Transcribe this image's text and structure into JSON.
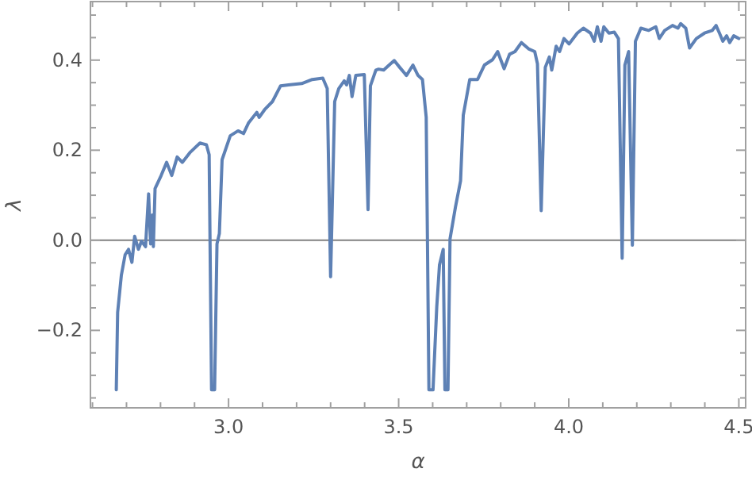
{
  "chart_data": {
    "type": "line",
    "xlabel": "α",
    "ylabel": "λ",
    "xlim": [
      2.594,
      4.52
    ],
    "ylim": [
      -0.372,
      0.53
    ],
    "xticks": [
      {
        "value": 2.6,
        "label": null
      },
      {
        "value": 2.7,
        "label": null
      },
      {
        "value": 2.8,
        "label": null
      },
      {
        "value": 2.9,
        "label": null
      },
      {
        "value": 3.0,
        "label": "3.0"
      },
      {
        "value": 3.1,
        "label": null
      },
      {
        "value": 3.2,
        "label": null
      },
      {
        "value": 3.3,
        "label": null
      },
      {
        "value": 3.4,
        "label": null
      },
      {
        "value": 3.5,
        "label": "3.5"
      },
      {
        "value": 3.6,
        "label": null
      },
      {
        "value": 3.7,
        "label": null
      },
      {
        "value": 3.8,
        "label": null
      },
      {
        "value": 3.9,
        "label": null
      },
      {
        "value": 4.0,
        "label": "4.0"
      },
      {
        "value": 4.1,
        "label": null
      },
      {
        "value": 4.2,
        "label": null
      },
      {
        "value": 4.3,
        "label": null
      },
      {
        "value": 4.4,
        "label": null
      },
      {
        "value": 4.5,
        "label": "4.5"
      }
    ],
    "yticks": [
      {
        "value": -0.35,
        "label": null
      },
      {
        "value": -0.3,
        "label": null
      },
      {
        "value": -0.25,
        "label": null
      },
      {
        "value": -0.2,
        "label": "−0.2"
      },
      {
        "value": -0.15,
        "label": null
      },
      {
        "value": -0.1,
        "label": null
      },
      {
        "value": -0.05,
        "label": null
      },
      {
        "value": 0,
        "label": "0.0"
      },
      {
        "value": 0.05,
        "label": null
      },
      {
        "value": 0.1,
        "label": null
      },
      {
        "value": 0.15,
        "label": null
      },
      {
        "value": 0.2,
        "label": "0.2"
      },
      {
        "value": 0.25,
        "label": null
      },
      {
        "value": 0.3,
        "label": null
      },
      {
        "value": 0.35,
        "label": null
      },
      {
        "value": 0.4,
        "label": "0.4"
      },
      {
        "value": 0.45,
        "label": null
      },
      {
        "value": 0.5,
        "label": null
      }
    ],
    "ref_lines": [
      {
        "axis": "y",
        "value": 0,
        "color": "#808080"
      }
    ],
    "marker": "none",
    "line_style": "solid",
    "series": [
      {
        "color": "#5e81b5",
        "x": [
          2.67,
          2.674,
          2.685,
          2.696,
          2.706,
          2.716,
          2.724,
          2.735,
          2.744,
          2.756,
          2.765,
          2.771,
          2.776,
          2.779,
          2.784,
          2.802,
          2.818,
          2.833,
          2.849,
          2.864,
          2.888,
          2.916,
          2.935,
          2.943,
          2.95,
          2.959,
          2.966,
          2.973,
          2.981,
          3.005,
          3.028,
          3.044,
          3.059,
          3.083,
          3.09,
          3.106,
          3.129,
          3.153,
          3.176,
          3.215,
          3.246,
          3.277,
          3.29,
          3.3,
          3.312,
          3.324,
          3.34,
          3.347,
          3.355,
          3.363,
          3.374,
          3.399,
          3.41,
          3.417,
          3.433,
          3.441,
          3.456,
          3.472,
          3.487,
          3.503,
          3.523,
          3.542,
          3.557,
          3.57,
          3.581,
          3.589,
          3.601,
          3.612,
          3.62,
          3.631,
          3.636,
          3.645,
          3.651,
          3.667,
          3.682,
          3.69,
          3.709,
          3.732,
          3.752,
          3.776,
          3.791,
          3.81,
          3.826,
          3.842,
          3.861,
          3.882,
          3.9,
          3.908,
          3.919,
          3.931,
          3.943,
          3.95,
          3.963,
          3.973,
          3.986,
          4.001,
          4.025,
          4.043,
          4.064,
          4.075,
          4.084,
          4.095,
          4.103,
          4.118,
          4.134,
          4.146,
          4.157,
          4.165,
          4.176,
          4.187,
          4.196,
          4.212,
          4.235,
          4.256,
          4.266,
          4.282,
          4.305,
          4.321,
          4.329,
          4.344,
          4.355,
          4.375,
          4.399,
          4.422,
          4.433,
          4.443,
          4.453,
          4.464,
          4.473,
          4.485,
          4.5
        ],
        "values": [
          -0.332,
          -0.16,
          -0.077,
          -0.032,
          -0.02,
          -0.049,
          0.009,
          -0.02,
          -0.002,
          -0.014,
          0.103,
          -0.008,
          0.056,
          -0.014,
          0.115,
          0.144,
          0.173,
          0.144,
          0.185,
          0.173,
          0.196,
          0.216,
          0.212,
          0.19,
          -0.332,
          -0.332,
          -0.008,
          0.015,
          0.179,
          0.232,
          0.243,
          0.237,
          0.261,
          0.284,
          0.273,
          0.29,
          0.308,
          0.343,
          0.345,
          0.348,
          0.357,
          0.36,
          0.337,
          -0.081,
          0.308,
          0.337,
          0.354,
          0.345,
          0.366,
          0.319,
          0.366,
          0.368,
          0.068,
          0.343,
          0.378,
          0.38,
          0.378,
          0.389,
          0.399,
          0.384,
          0.366,
          0.389,
          0.366,
          0.357,
          0.273,
          -0.332,
          -0.332,
          -0.148,
          -0.055,
          -0.02,
          -0.332,
          -0.332,
          0.003,
          0.074,
          0.132,
          0.278,
          0.357,
          0.357,
          0.389,
          0.401,
          0.419,
          0.381,
          0.413,
          0.419,
          0.439,
          0.425,
          0.419,
          0.392,
          0.066,
          0.384,
          0.407,
          0.378,
          0.431,
          0.419,
          0.448,
          0.436,
          0.46,
          0.471,
          0.46,
          0.442,
          0.474,
          0.442,
          0.474,
          0.46,
          0.462,
          0.448,
          -0.04,
          0.389,
          0.419,
          -0.011,
          0.442,
          0.471,
          0.466,
          0.474,
          0.448,
          0.466,
          0.477,
          0.471,
          0.481,
          0.471,
          0.427,
          0.448,
          0.46,
          0.466,
          0.477,
          0.46,
          0.442,
          0.454,
          0.439,
          0.454,
          0.448
        ]
      }
    ]
  }
}
